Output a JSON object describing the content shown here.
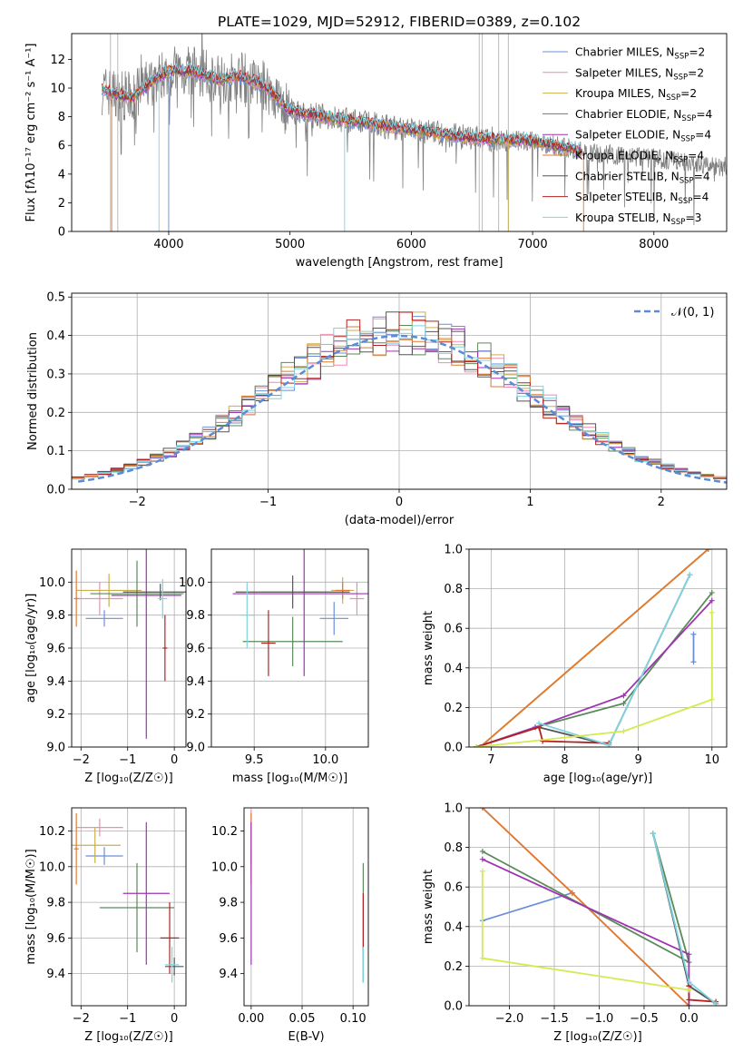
{
  "figure": {
    "title": "PLATE=1029, MJD=52912, FIBERID=0389, z=0.102"
  },
  "models": [
    {
      "name": "Chabrier MILES",
      "nssp": "2",
      "color": "#6a8fd8"
    },
    {
      "name": "Salpeter MILES",
      "nssp": "2",
      "color": "#ee8cb4"
    },
    {
      "name": "Kroupa MILES",
      "nssp": "2",
      "color": "#c9b04c"
    },
    {
      "name": "Chabrier ELODIE",
      "nssp": "4",
      "color": "#5a8a5a"
    },
    {
      "name": "Salpeter ELODIE",
      "nssp": "4",
      "color": "#9f33b3"
    },
    {
      "name": "Kroupa ELODIE",
      "nssp": "4",
      "color": "#e07a2e"
    },
    {
      "name": "Chabrier STELIB",
      "nssp": "4",
      "color": "#555555"
    },
    {
      "name": "Salpeter STELIB",
      "nssp": "4",
      "color": "#b22222"
    },
    {
      "name": "Kroupa STELIB",
      "nssp": "3",
      "color": "#7fd3e0"
    }
  ],
  "colors": {
    "data": "#808080",
    "normal": "#5b8bd6",
    "grid": "#b0b0b0",
    "lime": "#d4ea50"
  },
  "chart_data": [
    {
      "id": "spectrum",
      "type": "line",
      "xlabel": "wavelength [Angstrom, rest frame]",
      "ylabel": "Flux [fλ10⁻¹⁷ erg cm⁻² s⁻¹ A⁻¹]",
      "xlim": [
        3200,
        8600
      ],
      "ylim": [
        0,
        13.8
      ],
      "xticks": [
        4000,
        5000,
        6000,
        7000,
        8000
      ],
      "yticks": [
        0,
        2,
        4,
        6,
        8,
        10,
        12
      ],
      "continuum": {
        "x": [
          3450,
          3550,
          3700,
          3850,
          4000,
          4200,
          4400,
          4600,
          4800,
          5000,
          5500,
          6000,
          6500,
          7000,
          7400
        ],
        "y": [
          9.9,
          9.6,
          9.3,
          10.4,
          11.2,
          11.2,
          10.6,
          10.8,
          10.1,
          8.4,
          7.7,
          7.1,
          6.5,
          6.3,
          5.6
        ]
      },
      "data_continuum": {
        "x": [
          3450,
          3550,
          3700,
          3850,
          4000,
          4200,
          4400,
          4600,
          4800,
          5000,
          5500,
          6000,
          6500,
          7000,
          7500,
          8000,
          8500,
          8600
        ],
        "y": [
          9.9,
          9.6,
          9.3,
          10.4,
          11.2,
          11.2,
          10.6,
          10.8,
          10.1,
          8.4,
          7.7,
          7.1,
          6.5,
          6.3,
          5.5,
          5.1,
          4.6,
          4.5
        ]
      }
    },
    {
      "id": "residuals",
      "type": "line",
      "xlabel": "(data-model)/error",
      "ylabel": "Normed distribution",
      "xlim": [
        -2.5,
        2.5
      ],
      "ylim": [
        0,
        0.51
      ],
      "xticks": [
        -2,
        -1,
        0,
        1,
        2
      ],
      "yticks": [
        0.0,
        0.1,
        0.2,
        0.3,
        0.4,
        0.5
      ],
      "normal_label": "𝒩(0, 1)",
      "bin_width": 0.1
    },
    {
      "id": "age_vs_Z",
      "type": "scatter",
      "xlabel": "Z [log₁₀(Z/Z☉)]",
      "ylabel": "age  [log₁₀(age/yr)]",
      "xlim": [
        -2.2,
        0.25
      ],
      "ylim": [
        9.0,
        10.2
      ],
      "xticks": [
        -2,
        -1,
        0
      ],
      "yticks": [
        9.0,
        9.2,
        9.4,
        9.6,
        9.8,
        10.0
      ],
      "points": [
        {
          "model": 0,
          "x": -1.5,
          "xerr": 0.4,
          "y": 9.78,
          "yerr": 0.05
        },
        {
          "model": 1,
          "x": -1.6,
          "xerr": 0.5,
          "y": 9.9,
          "yerr": 0.1
        },
        {
          "model": 2,
          "x": -1.4,
          "xerr": 0.7,
          "y": 9.95,
          "yerr": 0.1
        },
        {
          "model": 3,
          "x": -0.8,
          "xerr": 1.0,
          "y": 9.93,
          "yerr": 0.2
        },
        {
          "model": 4,
          "x": -0.6,
          "xerr": 0.75,
          "y": 9.92,
          "yerr": 0.87
        },
        {
          "model": 5,
          "x": -2.1,
          "xerr": 0.05,
          "y": 9.9,
          "yerr": 0.17
        },
        {
          "model": 6,
          "x": -0.3,
          "xerr": 0.8,
          "y": 9.94,
          "yerr": 0.05
        },
        {
          "model": 7,
          "x": -0.2,
          "xerr": 0.05,
          "y": 9.6,
          "yerr": 0.2
        },
        {
          "model": 8,
          "x": -0.25,
          "xerr": 0.1,
          "y": 9.9,
          "yerr": 0.12
        }
      ]
    },
    {
      "id": "age_vs_mass",
      "type": "scatter",
      "xlabel": "mass [log₁₀(M/M☉)]",
      "ylabel": "",
      "xlim": [
        9.2,
        10.3
      ],
      "ylim": [
        9.0,
        10.2
      ],
      "xticks": [
        9.5,
        10.0
      ],
      "yticks": [
        9.0,
        9.2,
        9.4,
        9.6,
        9.8,
        10.0
      ],
      "points": [
        {
          "model": 0,
          "x": 10.06,
          "xerr": 0.1,
          "y": 9.78,
          "yerr": 0.1
        },
        {
          "model": 1,
          "x": 10.22,
          "xerr": 0.05,
          "y": 9.9,
          "yerr": 0.1
        },
        {
          "model": 2,
          "x": 10.12,
          "xerr": 0.08,
          "y": 9.95,
          "yerr": 0.08
        },
        {
          "model": 3,
          "x": 9.77,
          "xerr": 0.35,
          "y": 9.64,
          "yerr": 0.15
        },
        {
          "model": 4,
          "x": 9.85,
          "xerr": 0.5,
          "y": 9.93,
          "yerr": 0.5
        },
        {
          "model": 5,
          "x": 10.12,
          "xerr": 0.05,
          "y": 9.95,
          "yerr": 0.05
        },
        {
          "model": 6,
          "x": 9.77,
          "xerr": 0.4,
          "y": 9.94,
          "yerr": 0.1
        },
        {
          "model": 7,
          "x": 9.6,
          "xerr": 0.05,
          "y": 9.63,
          "yerr": 0.2
        },
        {
          "model": 8,
          "x": 9.45,
          "xerr": 0.05,
          "y": 9.8,
          "yerr": 0.2
        }
      ]
    },
    {
      "id": "weight_vs_age",
      "type": "line",
      "xlabel": "age  [log₁₀(age/yr)]",
      "ylabel": "mass weight",
      "xlim": [
        6.7,
        10.2
      ],
      "ylim": [
        0,
        1.0
      ],
      "xticks": [
        7,
        8,
        9,
        10
      ],
      "yticks": [
        0.0,
        0.2,
        0.4,
        0.6,
        0.8,
        1.0
      ],
      "series": [
        {
          "model": 0,
          "x": [
            9.75,
            9.75
          ],
          "y": [
            0.43,
            0.57
          ]
        },
        {
          "model": 1,
          "x": [
            6.85,
            9.95
          ],
          "y": [
            0.0,
            1.0
          ]
        },
        {
          "model": 2,
          "x": [
            6.85,
            9.95
          ],
          "y": [
            0.0,
            1.0
          ]
        },
        {
          "model": 3,
          "x": [
            6.8,
            7.6,
            8.8,
            10.0
          ],
          "y": [
            0.0,
            0.1,
            0.22,
            0.78
          ]
        },
        {
          "model": 4,
          "x": [
            6.8,
            7.6,
            8.8,
            10.0
          ],
          "y": [
            0.0,
            0.1,
            0.26,
            0.74
          ]
        },
        {
          "model": 5,
          "x": [
            6.85,
            9.95
          ],
          "y": [
            0.0,
            1.0
          ]
        },
        {
          "model": 6,
          "x": [
            7.65,
            8.6,
            9.7
          ],
          "y": [
            0.1,
            0.01,
            0.87
          ]
        },
        {
          "model": 7,
          "x": [
            6.8,
            7.65,
            7.7,
            8.6
          ],
          "y": [
            0.0,
            0.1,
            0.03,
            0.02
          ]
        },
        {
          "model": 8,
          "x": [
            7.65,
            8.6,
            9.7
          ],
          "y": [
            0.12,
            0.01,
            0.87
          ]
        },
        {
          "model": 9,
          "x": [
            6.8,
            8.8,
            10.0,
            10.0
          ],
          "y": [
            0.0,
            0.08,
            0.24,
            0.68
          ]
        }
      ]
    },
    {
      "id": "mass_vs_Z",
      "type": "scatter",
      "xlabel": "Z [log₁₀(Z/Z☉)]",
      "ylabel": "mass [log₁₀(M/M☉)]",
      "xlim": [
        -2.2,
        0.25
      ],
      "ylim": [
        9.22,
        10.33
      ],
      "xticks": [
        -2,
        -1,
        0
      ],
      "yticks": [
        9.4,
        9.6,
        9.8,
        10.0,
        10.2
      ],
      "points": [
        {
          "model": 0,
          "x": -1.5,
          "xerr": 0.4,
          "y": 10.06,
          "yerr": 0.05
        },
        {
          "model": 1,
          "x": -1.6,
          "xerr": 0.5,
          "y": 10.22,
          "yerr": 0.05
        },
        {
          "model": 2,
          "x": -1.7,
          "xerr": 0.55,
          "y": 10.12,
          "yerr": 0.1
        },
        {
          "model": 3,
          "x": -0.8,
          "xerr": 0.8,
          "y": 9.77,
          "yerr": 0.25
        },
        {
          "model": 4,
          "x": -0.6,
          "xerr": 0.5,
          "y": 9.85,
          "yerr": 0.4
        },
        {
          "model": 5,
          "x": -2.1,
          "xerr": 0.05,
          "y": 10.1,
          "yerr": 0.2
        },
        {
          "model": 6,
          "x": 0.0,
          "xerr": 0.2,
          "y": 9.44,
          "yerr": 0.05
        },
        {
          "model": 7,
          "x": -0.1,
          "xerr": 0.2,
          "y": 9.6,
          "yerr": 0.2
        },
        {
          "model": 8,
          "x": -0.05,
          "xerr": 0.15,
          "y": 9.45,
          "yerr": 0.1
        }
      ]
    },
    {
      "id": "mass_vs_EBV",
      "type": "scatter",
      "xlabel": "E(B-V)",
      "ylabel": "",
      "xlim": [
        -0.007,
        0.115
      ],
      "ylim": [
        9.22,
        10.33
      ],
      "xticks": [
        0.0,
        0.05,
        0.1
      ],
      "ytick_labels": [
        "9.4",
        "9.6",
        "9.8",
        "10.0",
        "10.2"
      ],
      "points": [
        {
          "model": 0,
          "x": 0.0,
          "y": 10.06,
          "yerr": 0.05
        },
        {
          "model": 1,
          "x": 0.0,
          "y": 10.22,
          "yerr": 0.1
        },
        {
          "model": 5,
          "x": 0.0,
          "y": 10.1,
          "yerr": 0.2
        },
        {
          "model": 4,
          "x": 0.0,
          "y": 9.85,
          "yerr": 0.4
        },
        {
          "model": 3,
          "x": 0.11,
          "y": 9.77,
          "yerr": 0.25
        },
        {
          "model": 7,
          "x": 0.11,
          "y": 9.6,
          "yerr": 0.25
        },
        {
          "model": 8,
          "x": 0.11,
          "y": 9.45,
          "yerr": 0.1
        }
      ]
    },
    {
      "id": "weight_vs_Z",
      "type": "line",
      "xlabel": "Z [log₁₀(Z/Z☉)]",
      "ylabel": "mass weight",
      "xlim": [
        -2.45,
        0.42
      ],
      "ylim": [
        0,
        1.0
      ],
      "xticks": [
        -2.0,
        -1.5,
        -1.0,
        -0.5,
        0.0
      ],
      "yticks": [
        0.0,
        0.2,
        0.4,
        0.6,
        0.8,
        1.0
      ],
      "series": [
        {
          "model": 0,
          "x": [
            -2.3,
            -1.3
          ],
          "y": [
            0.43,
            0.57
          ]
        },
        {
          "model": 1,
          "x": [
            -2.3,
            -1.3,
            0.0
          ],
          "y": [
            1.0,
            0.57,
            0.0
          ]
        },
        {
          "model": 5,
          "x": [
            -2.3,
            -1.3,
            0.0
          ],
          "y": [
            1.0,
            0.57,
            0.0
          ]
        },
        {
          "model": 3,
          "x": [
            -2.3,
            0.0,
            -0.4,
            0.0,
            0.3
          ],
          "y": [
            0.78,
            0.22,
            0.87,
            0.1,
            0.01
          ]
        },
        {
          "model": 4,
          "x": [
            -2.3,
            0.0,
            0.0
          ],
          "y": [
            0.74,
            0.26,
            0.0
          ]
        },
        {
          "model": 6,
          "x": [
            -0.4,
            0.0,
            0.3
          ],
          "y": [
            0.87,
            0.1,
            0.01
          ]
        },
        {
          "model": 7,
          "x": [
            0.0,
            0.0,
            0.3
          ],
          "y": [
            0.1,
            0.03,
            0.02
          ]
        },
        {
          "model": 8,
          "x": [
            -0.4,
            0.0,
            0.3
          ],
          "y": [
            0.87,
            0.12,
            0.01
          ]
        },
        {
          "model": 9,
          "x": [
            -2.3,
            -2.3,
            0.0
          ],
          "y": [
            0.68,
            0.24,
            0.08
          ]
        }
      ]
    }
  ]
}
